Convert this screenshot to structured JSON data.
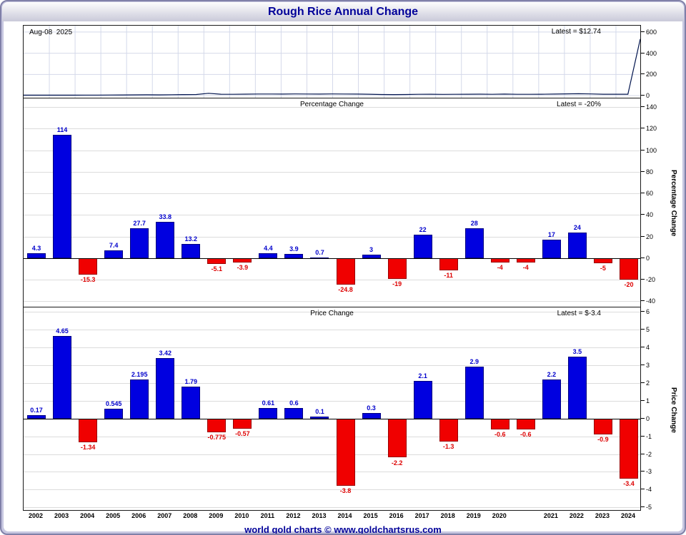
{
  "window": {
    "title": "Rough Rice Annual Change"
  },
  "footer": {
    "text": "world gold charts © www.goldchartsrus.com"
  },
  "colors": {
    "positive_bar": "#0000e0",
    "negative_bar": "#f00000",
    "title_text": "#000099",
    "grid": "#dcdcdc",
    "axis": "#000000"
  },
  "years": [
    "2002",
    "2003",
    "2004",
    "2005",
    "2006",
    "2007",
    "2008",
    "2009",
    "2010",
    "2011",
    "2012",
    "2013",
    "2014",
    "2015",
    "2016",
    "2017",
    "2018",
    "2019",
    "2020",
    "",
    "2021",
    "2022",
    "2023",
    "2024"
  ],
  "chart_data": [
    {
      "panel": "price-history",
      "type": "line",
      "date_label": "Aug-08  2025",
      "latest_label": "Latest = $12.74",
      "ylim": [
        -20,
        660
      ],
      "yticks": [
        600,
        400,
        200,
        0
      ],
      "values": [
        4.1,
        4.0,
        4.2,
        4.4,
        4.3,
        4.6,
        5.2,
        5.8,
        6.4,
        7.1,
        7.3,
        7.0,
        8.2,
        9.6,
        10.4,
        21.8,
        13.0,
        12.2,
        13.6,
        14.7,
        15.3,
        14.2,
        15.6,
        15.1,
        14.4,
        15.9,
        15.3,
        14.1,
        12.9,
        10.3,
        9.9,
        10.6,
        12.4,
        12.9,
        11.6,
        12.3,
        12.7,
        13.5,
        12.2,
        14.0,
        12.6,
        12.3,
        13.1,
        14.6,
        16.3,
        17.9,
        15.6,
        13.3,
        12.9,
        12.74,
        535
      ]
    },
    {
      "panel": "percentage-change",
      "type": "bar",
      "title": "Percentage Change",
      "ylabel": "Percentage Change",
      "latest_label": "Latest = -20%",
      "ylim": [
        -45,
        148
      ],
      "yticks": [
        140,
        120,
        100,
        80,
        60,
        40,
        20,
        0,
        -20,
        -40
      ],
      "labels": [
        "4.3",
        "114",
        "-15.3",
        "7.4",
        "27.7",
        "33.8",
        "13.2",
        "-5.1",
        "-3.9",
        "4.4",
        "3.9",
        "0.7",
        "-24.8",
        "3",
        "-19",
        "22",
        "-11",
        "28",
        "-4",
        "-4",
        "17",
        "24",
        "-5",
        "-20"
      ]
    },
    {
      "panel": "price-change",
      "type": "bar",
      "title": "Price Change",
      "ylabel": "Price Change",
      "latest_label": "Latest = $-3.4",
      "ylim": [
        -5.15,
        6.25
      ],
      "yticks": [
        6,
        5,
        4,
        3,
        2,
        1,
        0,
        -1,
        -2,
        -3,
        -4,
        -5
      ],
      "labels": [
        "0.17",
        "4.65",
        "-1.34",
        "0.545",
        "2.195",
        "3.42",
        "1.79",
        "-0.775",
        "-0.57",
        "0.61",
        "0.6",
        "0.1",
        "-3.8",
        "0.3",
        "-2.2",
        "2.1",
        "-1.3",
        "2.9",
        "-0.6",
        "-0.6",
        "2.2",
        "3.5",
        "-0.9",
        "-3.4"
      ]
    }
  ]
}
